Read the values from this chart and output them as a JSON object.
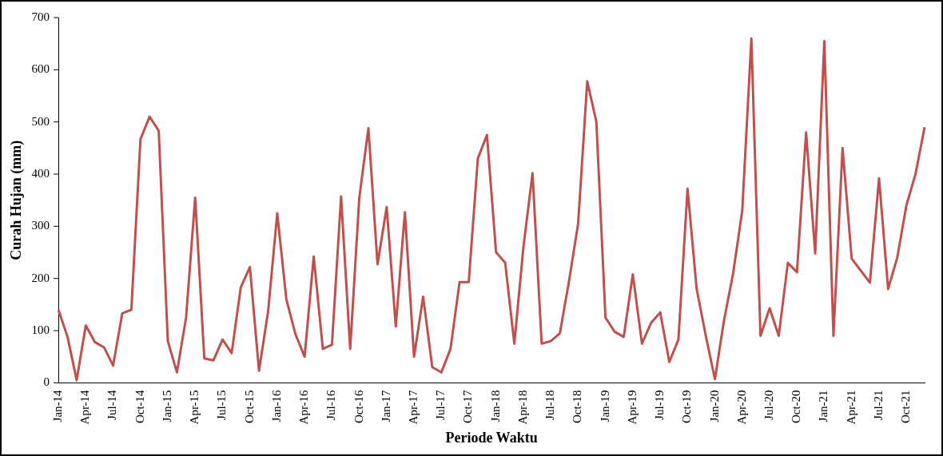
{
  "chart_data": {
    "type": "line",
    "xlabel": "Periode Waktu",
    "ylabel": "Curah Hujan (mm)",
    "categories": [
      "Jan-14",
      null,
      null,
      "Apr-14",
      null,
      null,
      "Jul-14",
      null,
      null,
      "Oct-14",
      null,
      null,
      "Jan-15",
      null,
      null,
      "Apr-15",
      null,
      null,
      "Jul-15",
      null,
      null,
      "Oct-15",
      null,
      null,
      "Jan-16",
      null,
      null,
      "Apr-16",
      null,
      null,
      "Jul-16",
      null,
      null,
      "Oct-16",
      null,
      null,
      "Jan-17",
      null,
      null,
      "Apr-17",
      null,
      null,
      "Jul-17",
      null,
      null,
      "Oct-17",
      null,
      null,
      "Jan-18",
      null,
      null,
      "Apr-18",
      null,
      null,
      "Jul-18",
      null,
      null,
      "Oct-18",
      null,
      null,
      "Jan-19",
      null,
      null,
      "Apr-19",
      null,
      null,
      "Jul-19",
      null,
      null,
      "Oct-19",
      null,
      null,
      "Jan-20",
      null,
      null,
      "Apr-20",
      null,
      null,
      "Jul-20",
      null,
      null,
      "Oct-20",
      null,
      null,
      "Jan-21",
      null,
      null,
      "Apr-21",
      null,
      null,
      "Jul-21",
      null,
      null,
      "Oct-21",
      null,
      null
    ],
    "series": [
      {
        "color": "#c0504d",
        "values": [
          140,
          88,
          5,
          110,
          78,
          68,
          33,
          133,
          140,
          467,
          510,
          483,
          80,
          20,
          125,
          355,
          47,
          43,
          83,
          57,
          183,
          222,
          23,
          137,
          325,
          160,
          93,
          50,
          242,
          65,
          73,
          357,
          65,
          355,
          488,
          227,
          337,
          108,
          327,
          50,
          165,
          30,
          20,
          65,
          193,
          193,
          430,
          475,
          250,
          230,
          75,
          260,
          402,
          75,
          80,
          95,
          195,
          305,
          578,
          500,
          125,
          98,
          88,
          208,
          75,
          115,
          135,
          40,
          83,
          372,
          180,
          90,
          7,
          120,
          210,
          330,
          660,
          90,
          143,
          90,
          230,
          212,
          480,
          248,
          655,
          90,
          450,
          238,
          215,
          192,
          392,
          180,
          240,
          340,
          400,
          490
        ]
      }
    ],
    "ylim": [
      0,
      700
    ],
    "yticks": [
      0,
      100,
      200,
      300,
      400,
      500,
      600,
      700
    ],
    "grid": false,
    "legend": false,
    "marker": "none",
    "line_style": "solid"
  }
}
